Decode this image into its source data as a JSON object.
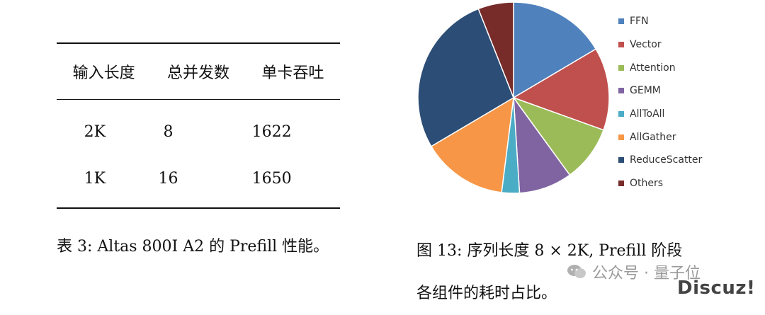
{
  "table": {
    "headers": [
      "输入长度",
      "总并发数",
      "单卡吞吐"
    ],
    "rows": [
      [
        "2K",
        "8",
        "1622"
      ],
      [
        "1K",
        "16",
        "1650"
      ]
    ],
    "caption": "表 3: Altas 800I A2 的 Prefill 性能。"
  },
  "chart_data": {
    "type": "pie",
    "labels": [
      "FFN",
      "Vector",
      "Attention",
      "GEMM",
      "AllToAll",
      "AllGather",
      "ReduceScatter",
      "Others"
    ],
    "values": [
      16.5,
      14.0,
      9.5,
      9.0,
      3.0,
      14.5,
      27.5,
      6.0
    ],
    "colors": [
      "#4f81bd",
      "#c0504d",
      "#9bbb59",
      "#8064a2",
      "#4bacc6",
      "#f79646",
      "#2c4d75",
      "#772c2a"
    ],
    "legend_position": "right",
    "title": ""
  },
  "figure": {
    "caption_line1": "图 13: 序列长度 8 × 2K, Prefill 阶段",
    "caption_line2": "各组件的耗时占比。"
  },
  "watermark": {
    "text": "公众号 · 量子位",
    "site": "Discuz!"
  }
}
